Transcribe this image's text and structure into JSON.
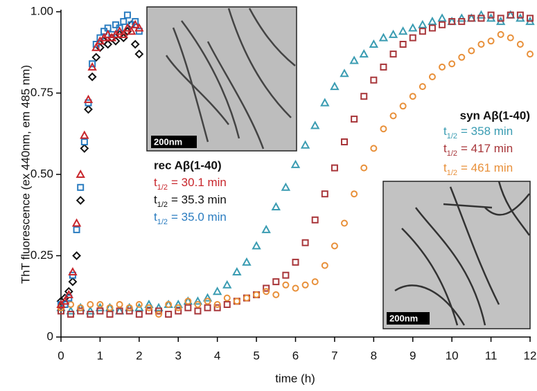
{
  "chart_data": {
    "type": "scatter",
    "ylabel": "ThT fluorescence (ex 440nm, em 485 nm)",
    "xlabel": "time (h)",
    "xlim": [
      0,
      12
    ],
    "xticks": [
      0,
      1,
      2,
      3,
      4,
      5,
      6,
      7,
      8,
      9,
      10,
      11,
      12
    ],
    "ylim": [
      0,
      1
    ],
    "yticks": [
      0,
      0.25,
      {
        "value": 0.5,
        "label": "0.50"
      },
      0.75,
      {
        "value": 1,
        "label": "1.00"
      }
    ],
    "series": [
      {
        "color": "#3a9cb2",
        "marker": "triangle",
        "x": [
          0,
          0.25,
          0.5,
          0.75,
          1,
          1.25,
          1.5,
          1.75,
          2,
          2.25,
          2.5,
          2.75,
          3,
          3.25,
          3.5,
          3.75,
          4,
          4.25,
          4.5,
          4.75,
          5,
          5.25,
          5.5,
          5.75,
          6,
          6.25,
          6.5,
          6.75,
          7,
          7.25,
          7.5,
          7.75,
          8,
          8.25,
          8.5,
          8.75,
          9,
          9.25,
          9.5,
          9.75,
          10,
          10.25,
          10.5,
          10.75,
          11,
          11.25,
          11.5,
          11.75,
          12
        ],
        "values": [
          0.09,
          0.08,
          0.09,
          0.08,
          0.09,
          0.09,
          0.08,
          0.09,
          0.09,
          0.1,
          0.09,
          0.1,
          0.1,
          0.11,
          0.11,
          0.12,
          0.14,
          0.16,
          0.2,
          0.23,
          0.28,
          0.33,
          0.4,
          0.46,
          0.53,
          0.59,
          0.65,
          0.72,
          0.77,
          0.81,
          0.85,
          0.87,
          0.9,
          0.92,
          0.93,
          0.94,
          0.95,
          0.96,
          0.97,
          0.98,
          0.97,
          0.98,
          0.98,
          0.99,
          0.98,
          0.97,
          0.99,
          0.98,
          0.97
        ]
      },
      {
        "color": "#a8363a",
        "marker": "square",
        "x": [
          0,
          0.25,
          0.5,
          0.75,
          1,
          1.25,
          1.5,
          1.75,
          2,
          2.25,
          2.5,
          2.75,
          3,
          3.25,
          3.5,
          3.75,
          4,
          4.25,
          4.5,
          4.75,
          5,
          5.25,
          5.5,
          5.75,
          6,
          6.25,
          6.5,
          6.75,
          7,
          7.25,
          7.5,
          7.75,
          8,
          8.25,
          8.5,
          8.75,
          9,
          9.25,
          9.5,
          9.75,
          10,
          10.25,
          10.5,
          10.75,
          11,
          11.25,
          11.5,
          11.75,
          12
        ],
        "values": [
          0.08,
          0.07,
          0.08,
          0.07,
          0.08,
          0.07,
          0.08,
          0.08,
          0.07,
          0.08,
          0.08,
          0.07,
          0.08,
          0.09,
          0.08,
          0.09,
          0.09,
          0.1,
          0.11,
          0.12,
          0.13,
          0.15,
          0.17,
          0.19,
          0.23,
          0.29,
          0.36,
          0.44,
          0.52,
          0.6,
          0.67,
          0.74,
          0.79,
          0.83,
          0.87,
          0.9,
          0.92,
          0.94,
          0.95,
          0.96,
          0.97,
          0.97,
          0.98,
          0.98,
          0.99,
          0.98,
          0.99,
          0.99,
          0.98
        ]
      },
      {
        "color": "#e8903a",
        "marker": "circle",
        "x": [
          0,
          0.25,
          0.5,
          0.75,
          1,
          1.25,
          1.5,
          1.75,
          2,
          2.25,
          2.5,
          2.75,
          3,
          3.25,
          3.5,
          3.75,
          4,
          4.25,
          4.5,
          4.75,
          5,
          5.25,
          5.5,
          5.75,
          6,
          6.25,
          6.5,
          6.75,
          7,
          7.25,
          7.5,
          7.75,
          8,
          8.25,
          8.5,
          8.75,
          9,
          9.25,
          9.5,
          9.75,
          10,
          10.25,
          10.5,
          10.75,
          11,
          11.25,
          11.5,
          11.75,
          12
        ],
        "values": [
          0.09,
          0.1,
          0.09,
          0.1,
          0.1,
          0.09,
          0.1,
          0.09,
          0.1,
          0.09,
          0.07,
          0.1,
          0.09,
          0.11,
          0.1,
          0.11,
          0.1,
          0.12,
          0.11,
          0.12,
          0.13,
          0.14,
          0.13,
          0.16,
          0.15,
          0.16,
          0.17,
          0.22,
          0.28,
          0.35,
          0.44,
          0.52,
          0.58,
          0.64,
          0.68,
          0.71,
          0.74,
          0.77,
          0.8,
          0.83,
          0.84,
          0.86,
          0.88,
          0.9,
          0.91,
          0.93,
          0.92,
          0.9,
          0.87
        ]
      },
      {
        "color": "#111111",
        "marker": "diamond",
        "x": [
          0,
          0.1,
          0.2,
          0.3,
          0.4,
          0.5,
          0.6,
          0.7,
          0.8,
          0.9,
          1,
          1.1,
          1.2,
          1.3,
          1.4,
          1.5,
          1.6,
          1.7,
          1.8,
          1.9,
          2
        ],
        "values": [
          0.11,
          0.12,
          0.14,
          0.17,
          0.25,
          0.42,
          0.58,
          0.7,
          0.8,
          0.86,
          0.89,
          0.91,
          0.9,
          0.92,
          0.91,
          0.93,
          0.92,
          0.94,
          0.96,
          0.9,
          0.87
        ]
      },
      {
        "color": "#2a7cc0",
        "marker": "square",
        "x": [
          0,
          0.1,
          0.2,
          0.3,
          0.4,
          0.5,
          0.6,
          0.7,
          0.8,
          0.9,
          1,
          1.1,
          1.2,
          1.3,
          1.4,
          1.5,
          1.6,
          1.7,
          1.8,
          1.9,
          2
        ],
        "values": [
          0.1,
          0.1,
          0.12,
          0.19,
          0.33,
          0.46,
          0.6,
          0.72,
          0.84,
          0.9,
          0.92,
          0.94,
          0.95,
          0.93,
          0.96,
          0.95,
          0.97,
          0.99,
          0.96,
          0.97,
          0.94
        ]
      },
      {
        "color": "#c8262c",
        "marker": "triangle",
        "x": [
          0,
          0.1,
          0.2,
          0.3,
          0.4,
          0.5,
          0.6,
          0.7,
          0.8,
          0.9,
          1,
          1.1,
          1.2,
          1.3,
          1.4,
          1.5,
          1.6,
          1.7,
          1.8,
          1.9,
          2
        ],
        "values": [
          0.1,
          0.11,
          0.13,
          0.2,
          0.35,
          0.5,
          0.62,
          0.73,
          0.83,
          0.89,
          0.91,
          0.92,
          0.93,
          0.92,
          0.93,
          0.94,
          0.93,
          0.95,
          0.94,
          0.96,
          0.95
        ]
      }
    ],
    "annotations": [
      {
        "title": "rec Aβ(1-40)",
        "lines": [
          {
            "t": "t",
            "sub": "1/2",
            "text": "= 30.1 min",
            "color": "#c8262c"
          },
          {
            "t": "t",
            "sub": "1/2",
            "text": "= 35.3 min",
            "color": "#111111"
          },
          {
            "t": "t",
            "sub": "1/2",
            "text": "= 35.0 min",
            "color": "#2a7cc0"
          }
        ]
      },
      {
        "title": "syn Aβ(1-40)",
        "lines": [
          {
            "t": "t",
            "sub": "1/2",
            "text": "= 358 min",
            "color": "#3a9cb2"
          },
          {
            "t": "t",
            "sub": "1/2",
            "text": "= 417 min",
            "color": "#a8363a"
          },
          {
            "t": "t",
            "sub": "1/2",
            "text": "= 461 min",
            "color": "#e8903a"
          }
        ]
      }
    ],
    "insets": [
      {
        "scale_label": "200nm"
      },
      {
        "scale_label": "200nm"
      }
    ]
  }
}
